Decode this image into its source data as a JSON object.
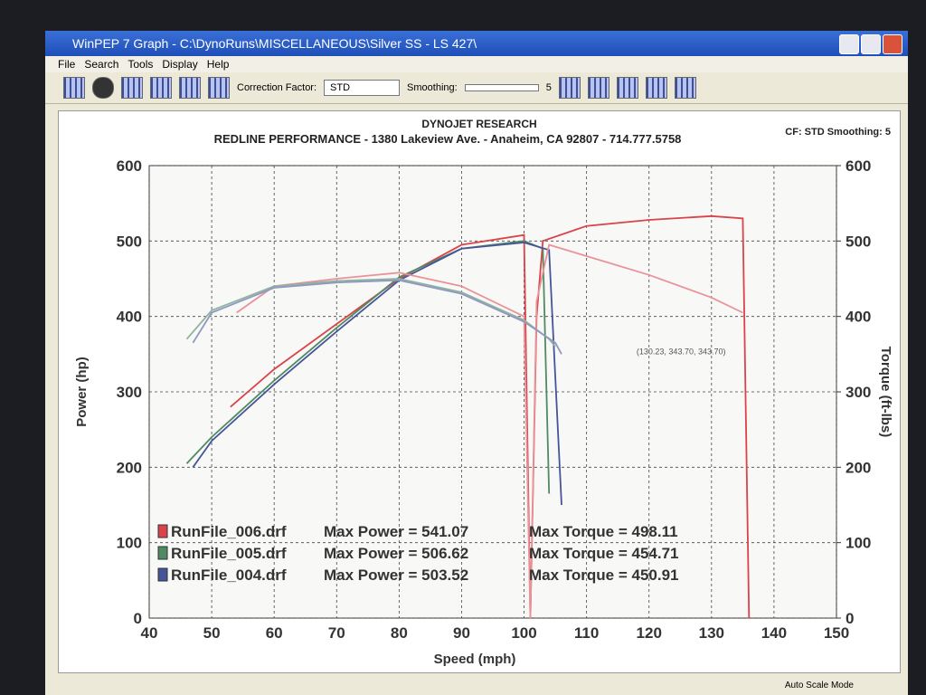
{
  "window": {
    "title": "WinPEP 7    Graph - C:\\DynoRuns\\MISCELLANEOUS\\Silver SS - LS 427\\",
    "menu": [
      "File",
      "Search",
      "Tools",
      "Display",
      "Help"
    ],
    "correction_label": "Correction Factor:",
    "correction_value": "STD",
    "smoothing_label": "Smoothing:",
    "smoothing_value": "5",
    "status": "Auto Scale Mode"
  },
  "chart_data": {
    "type": "line",
    "title": "DYNOJET RESEARCH",
    "subtitle": "REDLINE PERFORMANCE - 1380 Lakeview Ave. - Anaheim, CA 92807 - 714.777.5758",
    "settings_note": "CF: STD  Smoothing: 5",
    "annotation": "(130.23, 343.70, 343.70)",
    "x_label": "Speed (mph)",
    "y_label": "Power (hp)",
    "y2_label": "Torque (ft-lbs)",
    "xlim": [
      40,
      150
    ],
    "xticks": [
      40,
      50,
      60,
      70,
      80,
      90,
      100,
      110,
      120,
      130,
      140,
      150
    ],
    "ylim": [
      0,
      600
    ],
    "yticks": [
      0,
      100,
      200,
      300,
      400,
      500,
      600
    ],
    "y2lim": [
      0,
      600
    ],
    "y2ticks": [
      0,
      100,
      200,
      300,
      400,
      500,
      600
    ],
    "grid": true,
    "series": [
      {
        "name": "RunFile_006.drf",
        "color": "#d9434a",
        "axis": "y",
        "x": [
          53,
          60,
          70,
          80,
          90,
          100,
          101,
          102,
          103,
          110,
          120,
          130,
          135,
          136
        ],
        "values": [
          280,
          330,
          390,
          450,
          495,
          508,
          0,
          400,
          500,
          520,
          528,
          533,
          530,
          0
        ]
      },
      {
        "name": "RunFile_005.drf",
        "color": "#4f8a62",
        "axis": "y",
        "x": [
          46,
          50,
          60,
          70,
          80,
          90,
          100,
          103,
          104
        ],
        "values": [
          205,
          240,
          315,
          385,
          452,
          490,
          500,
          490,
          165
        ]
      },
      {
        "name": "RunFile_004.drf",
        "color": "#46549a",
        "axis": "y",
        "x": [
          47,
          50,
          60,
          70,
          80,
          90,
          100,
          104,
          106
        ],
        "values": [
          200,
          235,
          310,
          380,
          448,
          490,
          498,
          488,
          150
        ]
      },
      {
        "color": "#e8939a",
        "axis": "y2",
        "x": [
          54,
          60,
          70,
          80,
          90,
          100,
          101,
          102,
          104,
          110,
          120,
          130,
          135
        ],
        "values": [
          405,
          440,
          450,
          458,
          440,
          400,
          0,
          420,
          495,
          480,
          455,
          425,
          405
        ]
      },
      {
        "color": "#8fb39e",
        "axis": "y2",
        "x": [
          46,
          50,
          60,
          70,
          80,
          90,
          100,
          104,
          105
        ],
        "values": [
          370,
          408,
          440,
          447,
          450,
          432,
          395,
          370,
          360
        ]
      },
      {
        "color": "#8e98c2",
        "axis": "y2",
        "x": [
          47,
          50,
          60,
          70,
          80,
          90,
          100,
          105,
          106
        ],
        "values": [
          365,
          405,
          438,
          445,
          448,
          430,
          393,
          365,
          350
        ]
      }
    ],
    "legend": [
      {
        "power": "Max Power = 541.07",
        "torque": "Max Torque = 498.11"
      },
      {
        "power": "Max Power = 506.62",
        "torque": "Max Torque = 454.71"
      },
      {
        "power": "Max Power = 503.52",
        "torque": "Max Torque = 450.91"
      }
    ]
  }
}
